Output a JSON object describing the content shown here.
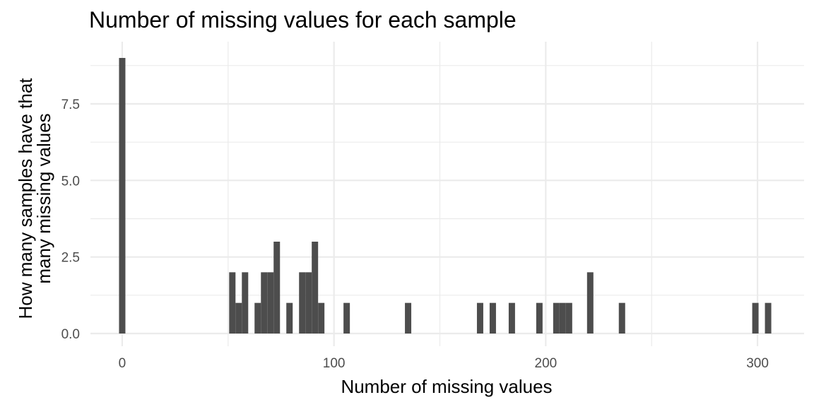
{
  "chart_data": {
    "type": "bar",
    "subtype": "histogram",
    "title": "Number of missing values for each sample",
    "xlabel": "Number of missing values",
    "ylabel": "How many samples have that many missing values",
    "ylabel_lines": [
      "How many samples have that",
      "many missing values"
    ],
    "xlim": [
      -15,
      322
    ],
    "ylim": [
      0,
      9.0
    ],
    "bin_width": 3,
    "x_ticks": [
      0,
      100,
      200,
      300
    ],
    "x_tick_labels": [
      "0",
      "100",
      "200",
      "300"
    ],
    "x_minor_ticks": [
      50,
      150,
      250
    ],
    "y_ticks": [
      0,
      2.5,
      5,
      7.5
    ],
    "y_tick_labels": [
      "0.0",
      "2.5",
      "5.0",
      "7.5"
    ],
    "y_minor_ticks": [
      1.25,
      3.75,
      6.25,
      8.75
    ],
    "grid": true,
    "legend": "none",
    "bar_color": "#4d4d4d",
    "grid_color": "#ebebeb",
    "bins": [
      {
        "x": 0,
        "count": 9
      },
      {
        "x": 52,
        "count": 2
      },
      {
        "x": 55,
        "count": 1
      },
      {
        "x": 58,
        "count": 2
      },
      {
        "x": 64,
        "count": 1
      },
      {
        "x": 67,
        "count": 2
      },
      {
        "x": 70,
        "count": 2
      },
      {
        "x": 73,
        "count": 3
      },
      {
        "x": 79,
        "count": 1
      },
      {
        "x": 85,
        "count": 2
      },
      {
        "x": 88,
        "count": 2
      },
      {
        "x": 91,
        "count": 3
      },
      {
        "x": 94,
        "count": 1
      },
      {
        "x": 106,
        "count": 1
      },
      {
        "x": 135,
        "count": 1
      },
      {
        "x": 169,
        "count": 1
      },
      {
        "x": 175,
        "count": 1
      },
      {
        "x": 184,
        "count": 1
      },
      {
        "x": 197,
        "count": 1
      },
      {
        "x": 205,
        "count": 1
      },
      {
        "x": 208,
        "count": 1
      },
      {
        "x": 211,
        "count": 1
      },
      {
        "x": 221,
        "count": 2
      },
      {
        "x": 236,
        "count": 1
      },
      {
        "x": 299,
        "count": 1
      },
      {
        "x": 305,
        "count": 1
      }
    ]
  }
}
